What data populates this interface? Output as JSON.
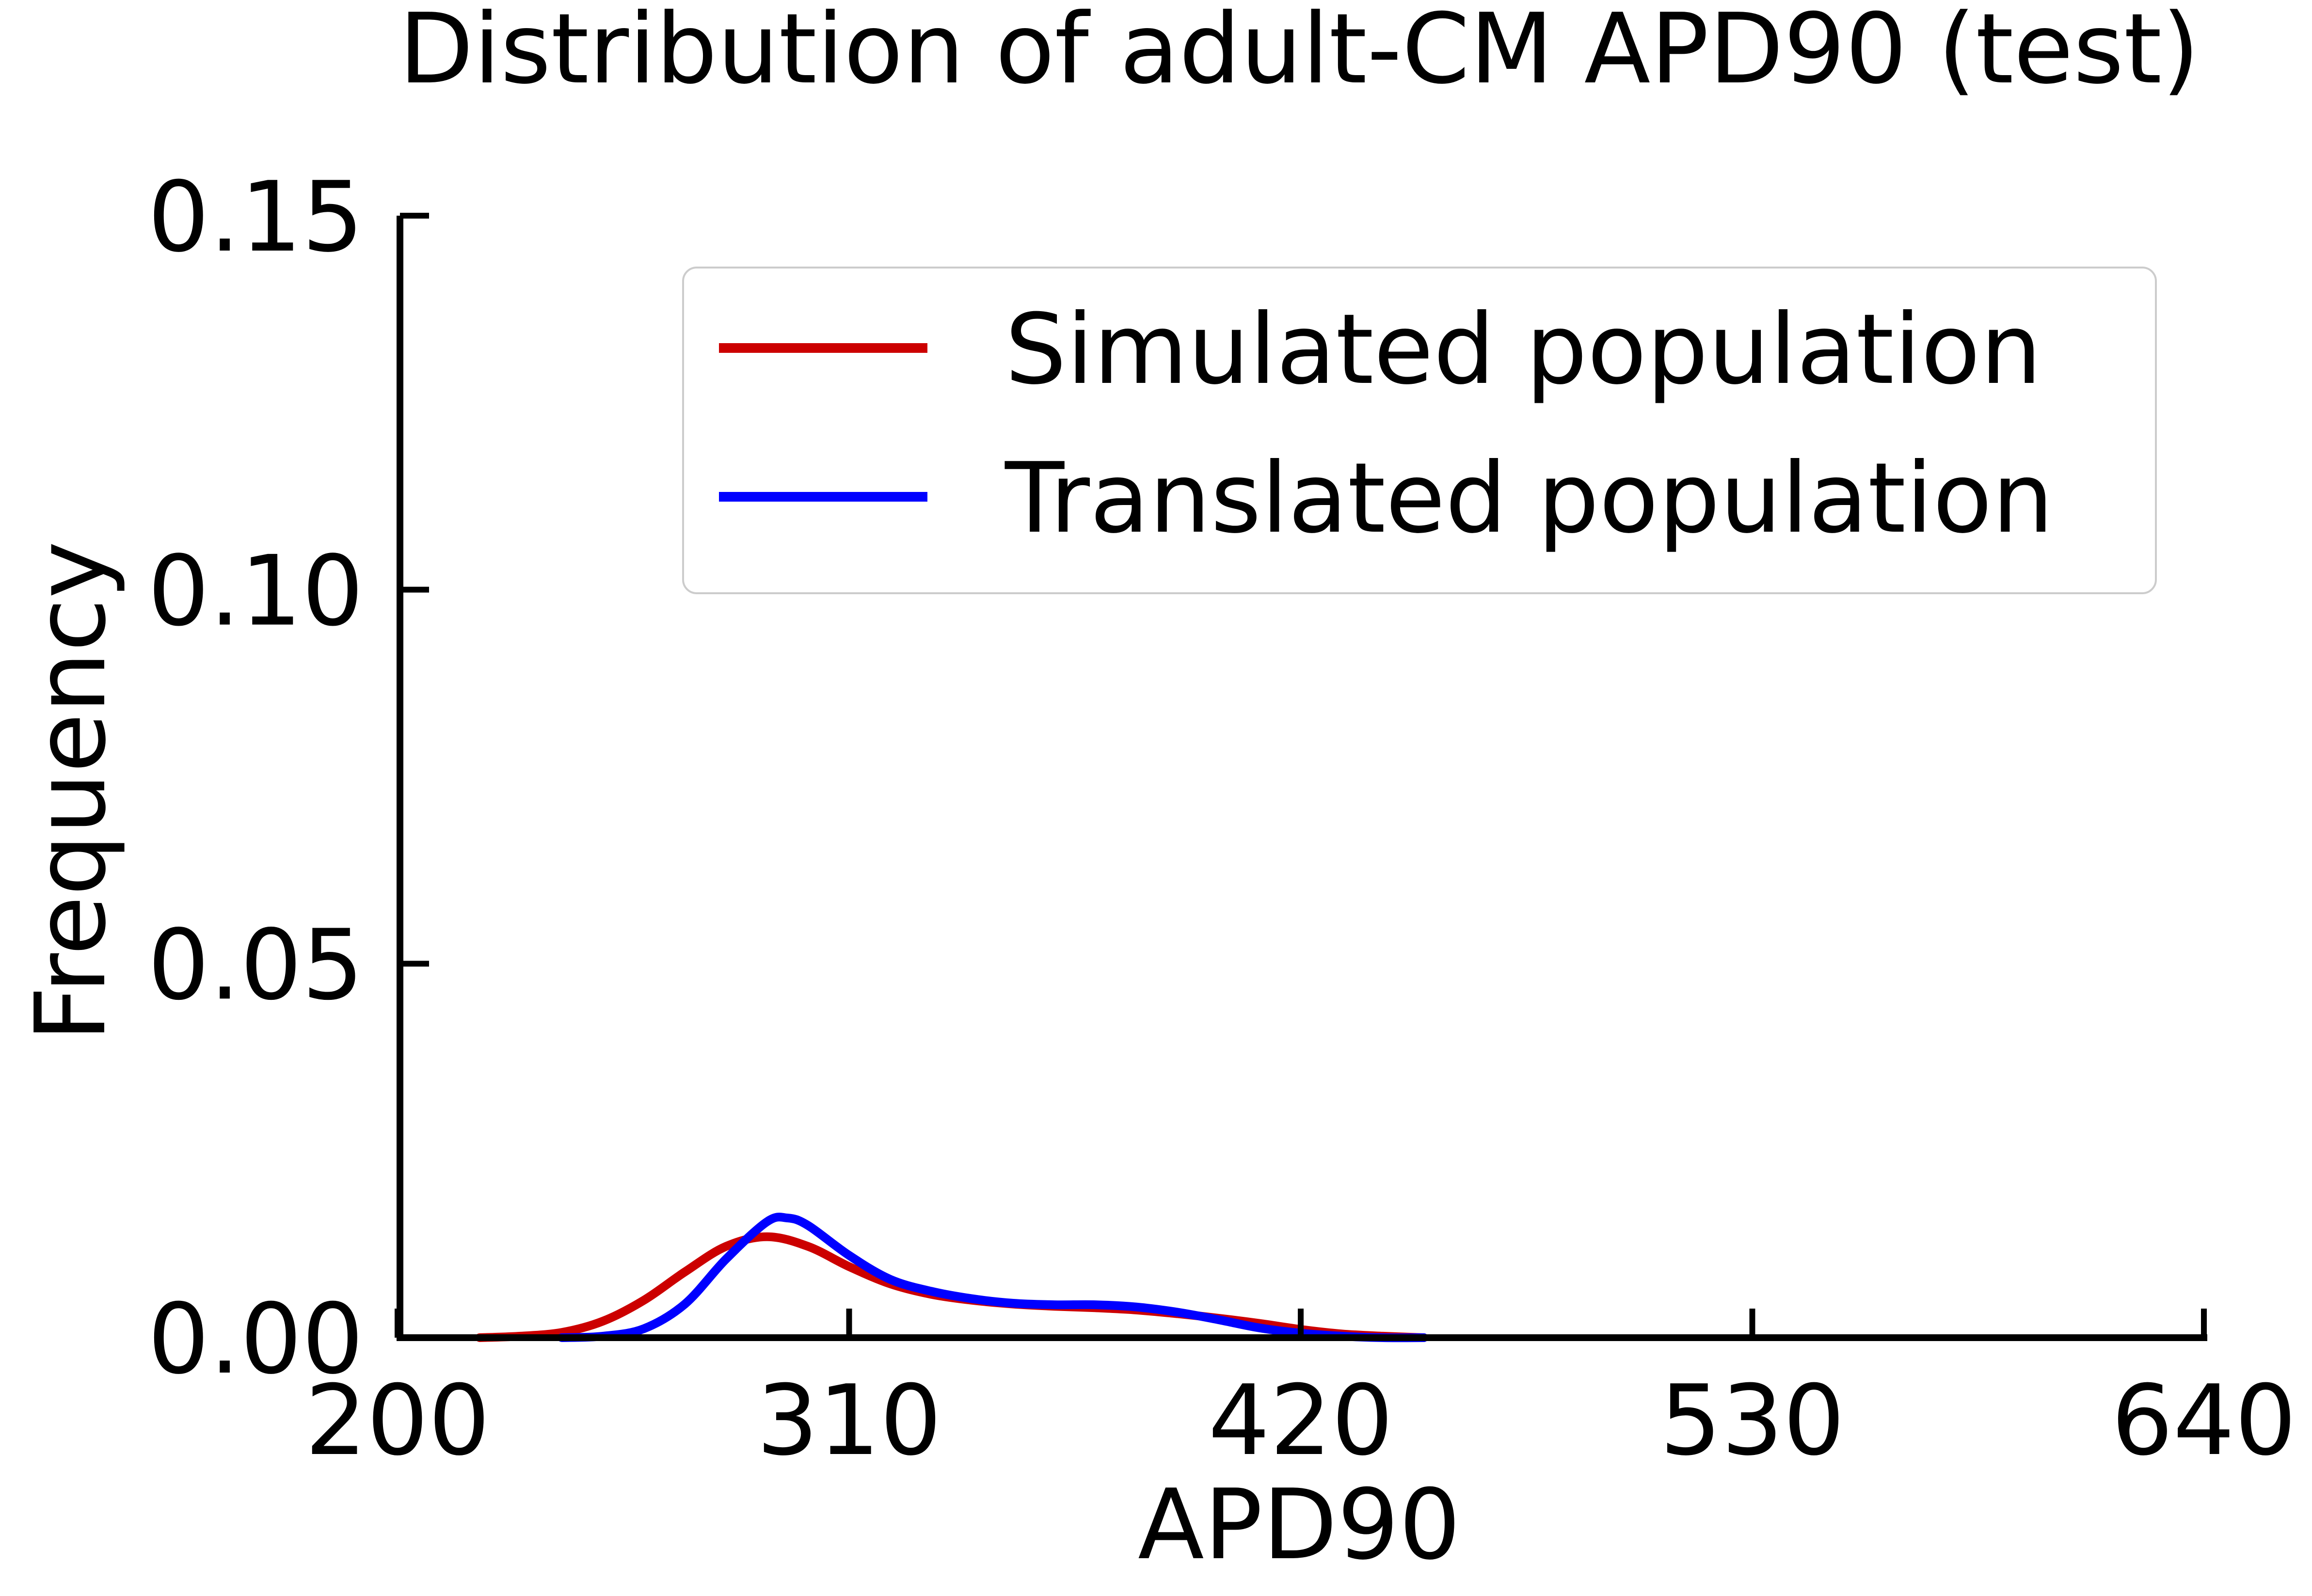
{
  "chart_data": {
    "type": "line",
    "title": "Distribution of adult-CM APD90 (test)",
    "xlabel": "APD90",
    "ylabel": "Frequency",
    "xlim": [
      180,
      640
    ],
    "ylim": [
      0,
      0.15
    ],
    "xticks": [
      200,
      310,
      420,
      530,
      640
    ],
    "yticks": [
      0.0,
      0.05,
      0.1,
      0.15
    ],
    "xtick_labels": [
      "200",
      "310",
      "420",
      "530",
      "640"
    ],
    "ytick_labels": [
      "0.00",
      "0.05",
      "0.10",
      "0.15"
    ],
    "grid": false,
    "legend_position": "top-right",
    "series": [
      {
        "name": "Simulated population",
        "color": "#cc0000",
        "x": [
          220,
          230,
          240,
          250,
          260,
          270,
          280,
          290,
          300,
          310,
          320,
          330,
          340,
          350,
          360,
          370,
          380,
          390,
          400,
          410,
          420,
          430,
          440,
          450
        ],
        "y": [
          0.0,
          0.0002,
          0.0007,
          0.0022,
          0.005,
          0.0088,
          0.0122,
          0.0135,
          0.0122,
          0.0095,
          0.0072,
          0.0058,
          0.005,
          0.0045,
          0.0042,
          0.004,
          0.0037,
          0.0032,
          0.0026,
          0.0019,
          0.0011,
          0.0005,
          0.0002,
          0.0
        ]
      },
      {
        "name": "Translated population",
        "color": "#0000ff",
        "x": [
          240,
          250,
          260,
          270,
          280,
          290,
          295,
          300,
          310,
          320,
          330,
          340,
          350,
          360,
          370,
          380,
          390,
          400,
          410,
          420,
          430,
          440,
          450
        ],
        "y": [
          0.0,
          0.0002,
          0.0012,
          0.0045,
          0.0105,
          0.0155,
          0.016,
          0.015,
          0.011,
          0.0078,
          0.0062,
          0.0052,
          0.0046,
          0.0044,
          0.0044,
          0.0041,
          0.0034,
          0.0024,
          0.0013,
          0.0006,
          0.0002,
          0.0,
          0.0
        ]
      }
    ]
  }
}
